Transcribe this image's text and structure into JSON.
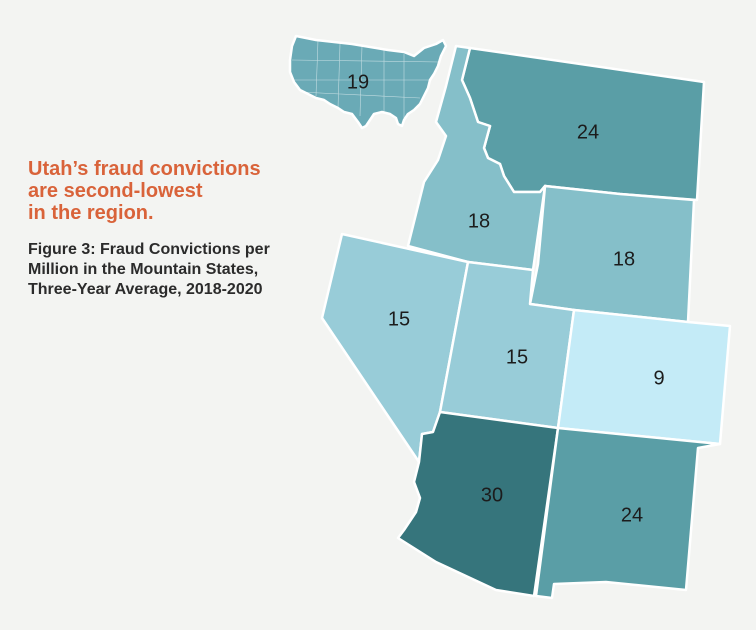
{
  "headline": [
    "Utah’s fraud convictions",
    "are second-lowest",
    "in the region."
  ],
  "caption": [
    "Figure 3: Fraud Convictions per",
    "Million in the Mountain States,",
    "Three-Year Average, 2018-2020"
  ],
  "colors": {
    "scale_9": "#c4ebf7",
    "scale_15": "#98ccd8",
    "scale_18": "#85bfc9",
    "scale_19": "#6aaab6",
    "scale_24": "#5a9ea6",
    "scale_30": "#36757c",
    "border": "#ffffff",
    "headline": "#d9633a"
  },
  "regions": [
    {
      "key": "us",
      "value": "19"
    },
    {
      "key": "montana",
      "value": "24"
    },
    {
      "key": "idaho",
      "value": "18"
    },
    {
      "key": "wyoming",
      "value": "18"
    },
    {
      "key": "nevada",
      "value": "15"
    },
    {
      "key": "utah",
      "value": "15"
    },
    {
      "key": "colorado",
      "value": "9"
    },
    {
      "key": "arizona",
      "value": "30"
    },
    {
      "key": "new_mexico",
      "value": "24"
    }
  ]
}
